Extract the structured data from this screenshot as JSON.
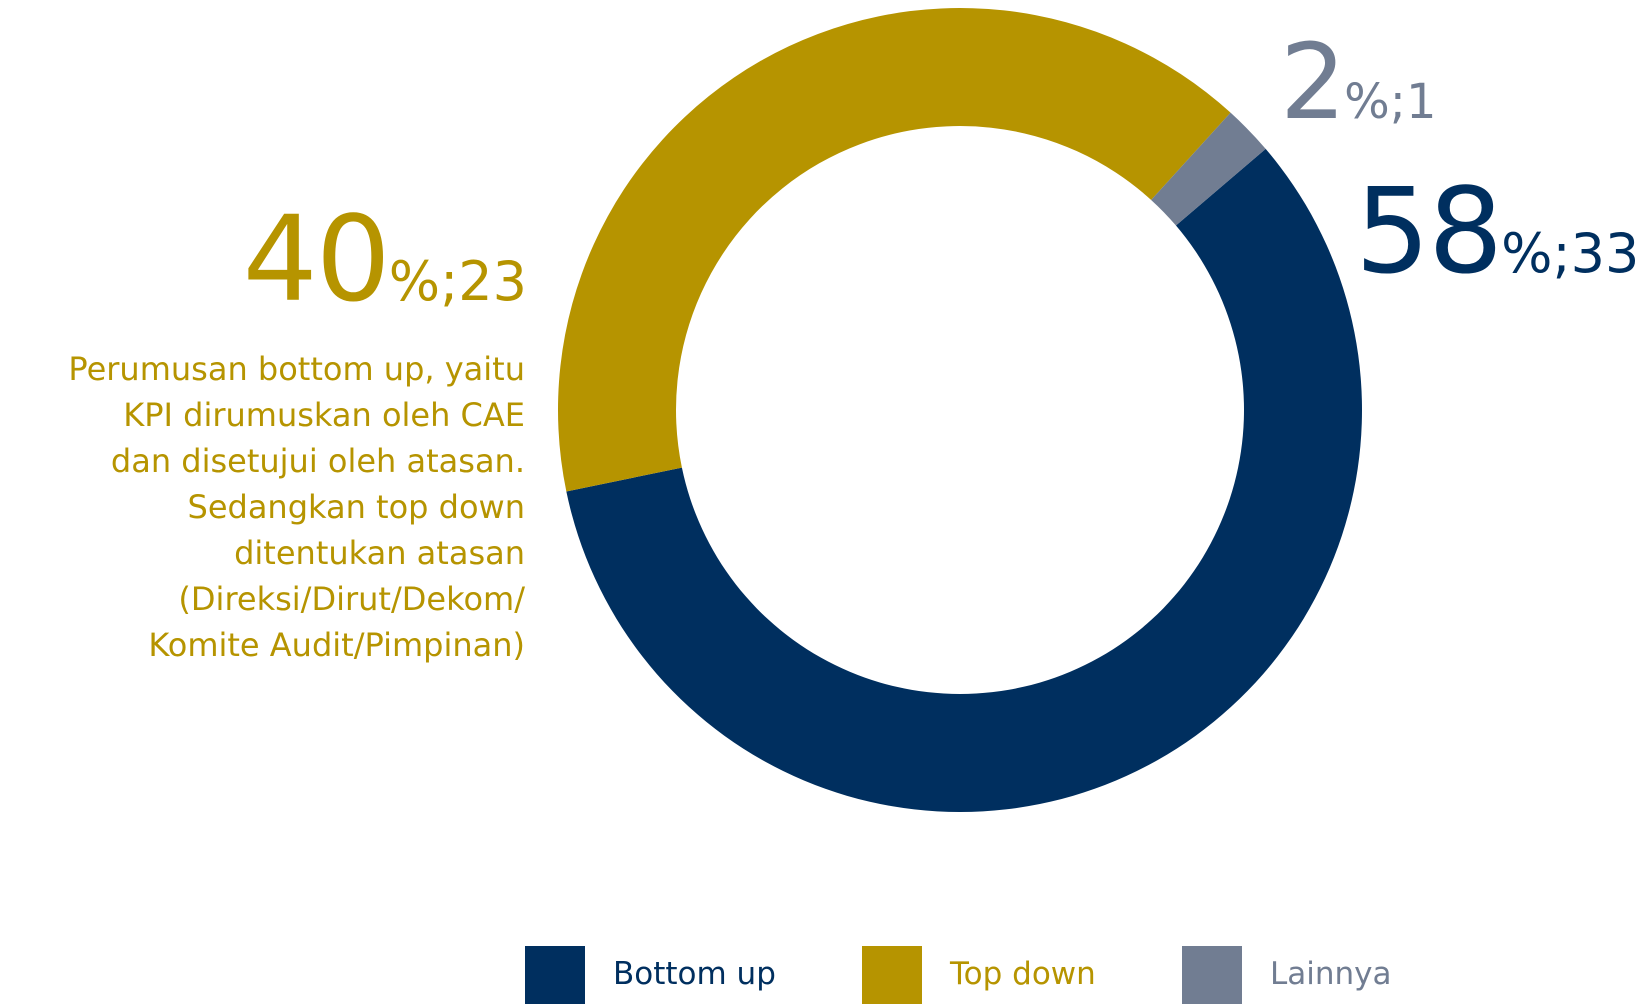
{
  "chart_data": {
    "type": "pie",
    "donut": true,
    "slices": [
      {
        "label": "Bottom up",
        "percent": 58,
        "count": 33,
        "color": "#002f5f",
        "display_pct": "58",
        "display_rest": "%;33"
      },
      {
        "label": "Top down",
        "percent": 40,
        "count": 23,
        "color": "#b69400",
        "display_pct": "40",
        "display_rest": "%;23"
      },
      {
        "label": "Lainnya",
        "percent": 2,
        "count": 1,
        "color": "#717d92",
        "display_pct": "2",
        "display_rest": "%;1"
      }
    ],
    "legend": [
      "Bottom up",
      "Top down",
      "Lainnya"
    ],
    "legend_position": "bottom"
  },
  "note": {
    "lines": [
      "Perumusan bottom up, yaitu",
      "KPI dirumuskan oleh CAE",
      "dan disetujui oleh atasan.",
      "Sedangkan top down",
      "ditentukan atasan",
      "(Direksi/Dirut/Dekom/",
      "Komite Audit/Pimpinan)"
    ]
  }
}
